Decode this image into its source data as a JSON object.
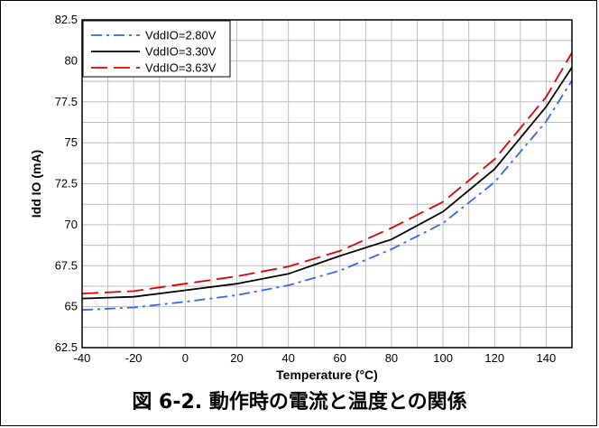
{
  "caption": "図 6-2. 動作時の電流と温度との関係",
  "chart_data": {
    "type": "line",
    "xlabel": "Temperature (°C)",
    "ylabel": "Idd IO (mA)",
    "xlim": [
      -40,
      150
    ],
    "ylim": [
      62.5,
      82.5
    ],
    "xticks": [
      -40,
      -20,
      0,
      20,
      40,
      60,
      80,
      100,
      120,
      140
    ],
    "yticks": [
      62.5,
      65,
      67.5,
      70,
      72.5,
      75,
      77.5,
      80,
      82.5
    ],
    "grid": true,
    "legend_position": "top-left",
    "x": [
      -40,
      -20,
      0,
      20,
      40,
      60,
      80,
      100,
      120,
      140,
      150
    ],
    "series": [
      {
        "name": "VddIO=2.80V",
        "color": "#3366ee",
        "dash": "dashdot",
        "values": [
          64.8,
          64.95,
          65.3,
          65.7,
          66.3,
          67.2,
          68.5,
          70.1,
          72.6,
          76.3,
          78.8
        ]
      },
      {
        "name": "VddIO=3.30V",
        "color": "#000000",
        "dash": "solid",
        "values": [
          65.5,
          65.6,
          66.0,
          66.4,
          67.0,
          68.1,
          69.1,
          70.8,
          73.4,
          77.2,
          79.6
        ]
      },
      {
        "name": "VddIO=3.63V",
        "color": "#dd0000",
        "dash": "dash",
        "values": [
          65.8,
          65.95,
          66.4,
          66.85,
          67.45,
          68.4,
          69.8,
          71.4,
          74.0,
          77.8,
          80.5
        ]
      }
    ]
  }
}
